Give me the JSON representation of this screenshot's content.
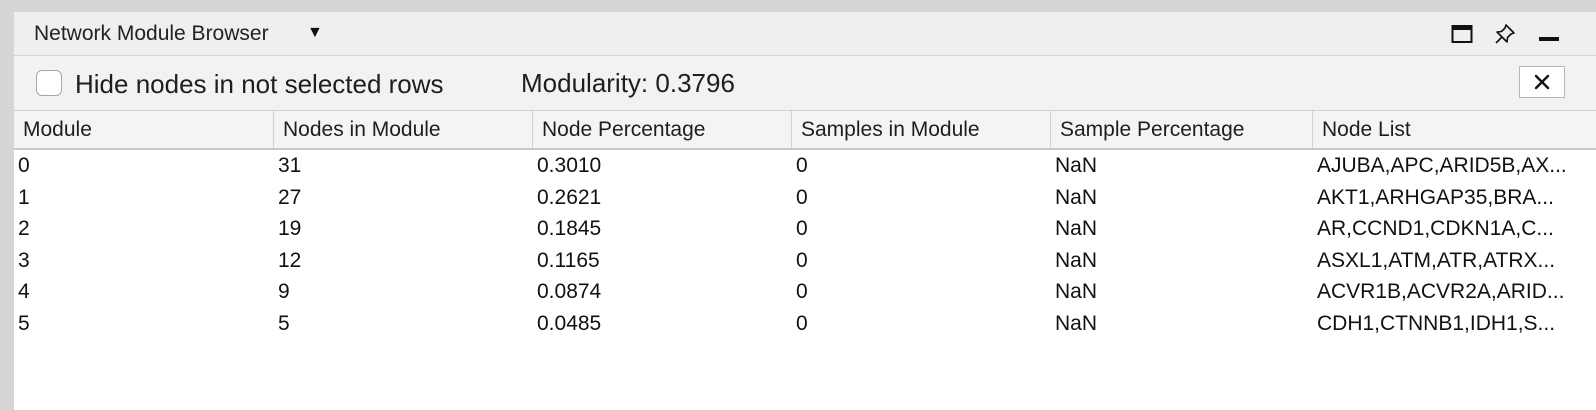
{
  "panel": {
    "title": "Network Module Browser",
    "title_menu_glyph": "▼"
  },
  "toolbar": {
    "hide_nodes_label": "Hide nodes in not selected rows",
    "hide_nodes_checked": false,
    "modularity_text": "Modularity: 0.3796",
    "close_glyph": "✕"
  },
  "icons": {
    "window": "window-icon",
    "pin": "pin-icon",
    "minimize": "minimize-icon",
    "close": "close-icon"
  },
  "table": {
    "columns": [
      "Module",
      "Nodes in Module",
      "Node Percentage",
      "Samples in Module",
      "Sample Percentage",
      "Node List"
    ],
    "rows": [
      [
        "0",
        "31",
        "0.3010",
        "0",
        "NaN",
        "AJUBA,APC,ARID5B,AX..."
      ],
      [
        "1",
        "27",
        "0.2621",
        "0",
        "NaN",
        "AKT1,ARHGAP35,BRA..."
      ],
      [
        "2",
        "19",
        "0.1845",
        "0",
        "NaN",
        "AR,CCND1,CDKN1A,C..."
      ],
      [
        "3",
        "12",
        "0.1165",
        "0",
        "NaN",
        "ASXL1,ATM,ATR,ATRX..."
      ],
      [
        "4",
        "9",
        "0.0874",
        "0",
        "NaN",
        "ACVR1B,ACVR2A,ARID..."
      ],
      [
        "5",
        "5",
        "0.0485",
        "0",
        "NaN",
        "CDH1,CTNNB1,IDH1,S..."
      ]
    ]
  }
}
